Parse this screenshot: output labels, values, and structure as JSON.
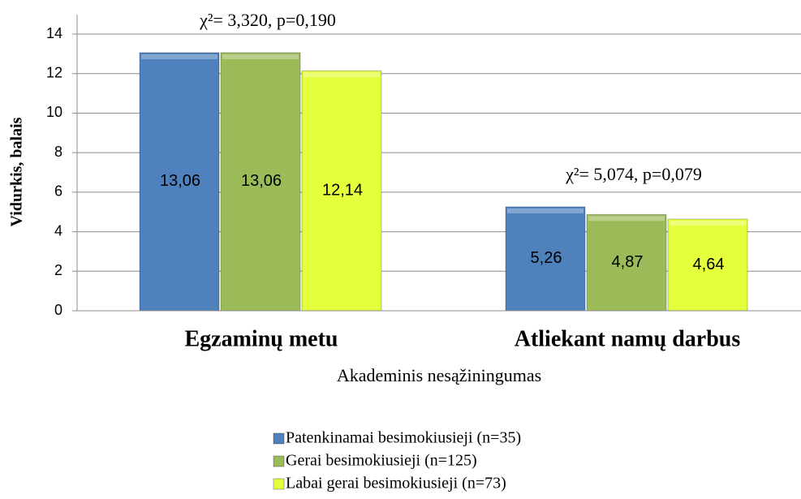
{
  "chart_data": {
    "type": "bar",
    "xlabel": "Akademinis nesąžiningumas",
    "ylabel": "Vidurkis, balais",
    "categories": [
      "Egzaminų metu",
      "Atliekant namų darbus"
    ],
    "series": [
      {
        "name": "Patenkinamai besimokiusieji (n=35)",
        "color": "#4f81bd",
        "values": [
          13.06,
          5.26
        ],
        "value_labels": [
          "13,06",
          "5,26"
        ]
      },
      {
        "name": "Gerai besimokiusieji (n=125)",
        "color": "#9bbb59",
        "values": [
          13.06,
          4.87
        ],
        "value_labels": [
          "13,06",
          "4,87"
        ]
      },
      {
        "name": "Labai gerai besimokiusieji (n=73)",
        "color": "#e4ff3c",
        "values": [
          12.14,
          4.64
        ],
        "value_labels": [
          "12,14",
          "4,64"
        ]
      }
    ],
    "annotations": [
      "χ²= 3,320, p=0,190",
      "χ²= 5,074, p=0,079"
    ],
    "ylim": [
      0,
      14
    ],
    "yticks": [
      0,
      2,
      4,
      6,
      8,
      10,
      12,
      14
    ],
    "grid": true,
    "legend": "bottom"
  }
}
